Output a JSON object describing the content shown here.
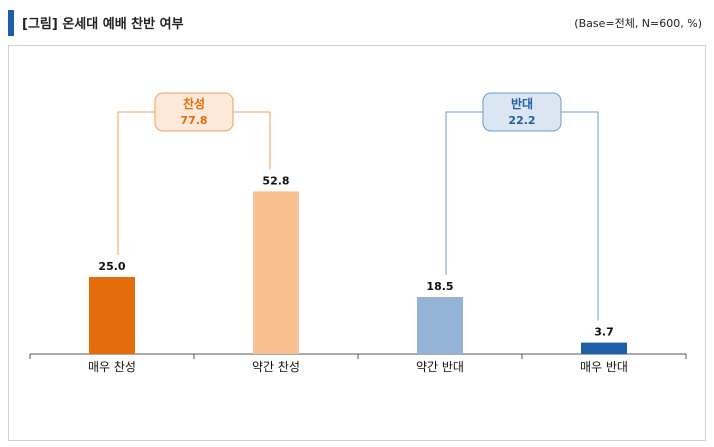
{
  "header": {
    "title": "[그림] 온세대 예배 찬반 여부",
    "base_note": "(Base=전체, N=600, %)"
  },
  "chart_data": {
    "type": "bar",
    "categories": [
      "매우 찬성",
      "약간 찬성",
      "약간 반대",
      "매우 반대"
    ],
    "values": [
      25.0,
      52.8,
      18.5,
      3.7
    ],
    "value_labels": [
      "25.0",
      "52.8",
      "18.5",
      "3.7"
    ],
    "colors": [
      "#e46c0a",
      "#f9c191",
      "#95b3d7",
      "#1f5fa8"
    ],
    "groups": [
      {
        "name": "찬성",
        "value_label": "77.8",
        "value": 77.8,
        "members": [
          0,
          1
        ],
        "text_color": "#e46c0a",
        "box_fill": "#fde9d9",
        "line_color": "#f0a060"
      },
      {
        "name": "반대",
        "value_label": "22.2",
        "value": 22.2,
        "members": [
          2,
          3
        ],
        "text_color": "#1f5fa8",
        "box_fill": "#dce6f2",
        "line_color": "#6a9bd0"
      }
    ],
    "title": "",
    "xlabel": "",
    "ylabel": "",
    "ylim": [
      0,
      100
    ],
    "grid": false
  }
}
